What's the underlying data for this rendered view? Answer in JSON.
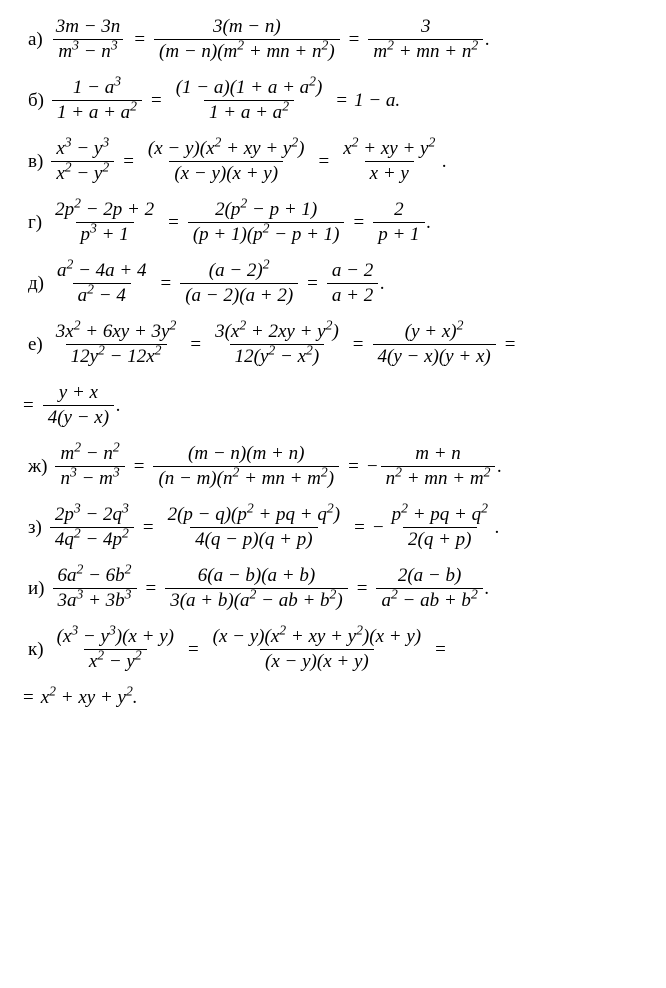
{
  "items": [
    {
      "label": "а)",
      "segments": [
        {
          "type": "frac",
          "num": "3m − 3n",
          "den": "m<sup>3</sup> − n<sup>3</sup>"
        },
        {
          "type": "op",
          "text": "="
        },
        {
          "type": "frac",
          "num": "3(m − n)",
          "den": "(m − n)(m<sup>2</sup> + mn + n<sup>2</sup>)"
        },
        {
          "type": "op",
          "text": "="
        },
        {
          "type": "frac",
          "num": "3",
          "den": "m<sup>2</sup> + mn + n<sup>2</sup>"
        },
        {
          "type": "text",
          "text": "."
        }
      ]
    },
    {
      "label": "б)",
      "segments": [
        {
          "type": "frac",
          "num": "1 − a<sup>3</sup>",
          "den": "1 + a + a<sup>2</sup>"
        },
        {
          "type": "op",
          "text": "="
        },
        {
          "type": "frac",
          "num": "(1 − a)(1 + a + a<sup>2</sup>)",
          "den": "1 + a + a<sup>2</sup>"
        },
        {
          "type": "op",
          "text": "="
        },
        {
          "type": "text",
          "text": "1 − a."
        }
      ]
    },
    {
      "label": "в)",
      "segments": [
        {
          "type": "frac",
          "num": "x<sup>3</sup> − y<sup>3</sup>",
          "den": "x<sup>2</sup> − y<sup>2</sup>"
        },
        {
          "type": "op",
          "text": "="
        },
        {
          "type": "frac",
          "num": "(x − y)(x<sup>2</sup> + xy + y<sup>2</sup>)",
          "den": "(x − y)(x + y)"
        },
        {
          "type": "op",
          "text": "="
        },
        {
          "type": "frac",
          "num": "x<sup>2</sup> + xy + y<sup>2</sup>",
          "den": "x + y"
        },
        {
          "type": "text",
          "text": "."
        }
      ]
    },
    {
      "label": "г)",
      "segments": [
        {
          "type": "frac",
          "num": "2p<sup>2</sup> − 2p + 2",
          "den": "p<sup>3</sup> + 1"
        },
        {
          "type": "op",
          "text": "="
        },
        {
          "type": "frac",
          "num": "2(p<sup>2</sup> − p + 1)",
          "den": "(p + 1)(p<sup>2</sup> − p + 1)"
        },
        {
          "type": "op",
          "text": "="
        },
        {
          "type": "frac",
          "num": "2",
          "den": "p + 1"
        },
        {
          "type": "text",
          "text": "."
        }
      ]
    },
    {
      "label": "д)",
      "segments": [
        {
          "type": "frac",
          "num": "a<sup>2</sup> − 4a + 4",
          "den": "a<sup>2</sup> − 4"
        },
        {
          "type": "op",
          "text": "="
        },
        {
          "type": "frac",
          "num": "(a − 2)<sup>2</sup>",
          "den": "(a − 2)(a + 2)"
        },
        {
          "type": "op",
          "text": "="
        },
        {
          "type": "frac",
          "num": "a − 2",
          "den": "a + 2"
        },
        {
          "type": "text",
          "text": "."
        }
      ]
    },
    {
      "label": "е)",
      "segments": [
        {
          "type": "frac",
          "num": "3x<sup>2</sup> + 6xy + 3y<sup>2</sup>",
          "den": "12y<sup>2</sup> − 12x<sup>2</sup>"
        },
        {
          "type": "op",
          "text": "="
        },
        {
          "type": "frac",
          "num": "3(x<sup>2</sup> + 2xy + y<sup>2</sup>)",
          "den": "12(y<sup>2</sup> − x<sup>2</sup>)"
        },
        {
          "type": "op",
          "text": "="
        },
        {
          "type": "frac",
          "num": "(y + x)<sup>2</sup>",
          "den": "4(y − x)(y + x)"
        },
        {
          "type": "op",
          "text": "="
        }
      ],
      "cont": [
        {
          "type": "op",
          "text": "="
        },
        {
          "type": "frac",
          "num": "y + x",
          "den": "4(y − x)"
        },
        {
          "type": "text",
          "text": "."
        }
      ]
    },
    {
      "label": "ж)",
      "segments": [
        {
          "type": "frac",
          "num": "m<sup>2</sup> − n<sup>2</sup>",
          "den": "n<sup>3</sup> − m<sup>3</sup>"
        },
        {
          "type": "op",
          "text": "="
        },
        {
          "type": "frac",
          "num": "(m − n)(m + n)",
          "den": "(n − m)(n<sup>2</sup> + mn + m<sup>2</sup>)"
        },
        {
          "type": "op",
          "text": "="
        },
        {
          "type": "text",
          "text": "−"
        },
        {
          "type": "frac",
          "num": "m + n",
          "den": "n<sup>2</sup> + mn + m<sup>2</sup>"
        },
        {
          "type": "text",
          "text": "."
        }
      ]
    },
    {
      "label": "з)",
      "segments": [
        {
          "type": "frac",
          "num": "2p<sup>3</sup> − 2q<sup>3</sup>",
          "den": "4q<sup>2</sup> − 4p<sup>2</sup>"
        },
        {
          "type": "op",
          "text": "="
        },
        {
          "type": "frac",
          "num": "2(p − q)(p<sup>2</sup> + pq + q<sup>2</sup>)",
          "den": "4(q − p)(q + p)"
        },
        {
          "type": "op",
          "text": "="
        },
        {
          "type": "text",
          "text": "−"
        },
        {
          "type": "frac",
          "num": "p<sup>2</sup> + pq + q<sup>2</sup>",
          "den": "2(q + p)"
        },
        {
          "type": "text",
          "text": "."
        }
      ]
    },
    {
      "label": "и)",
      "segments": [
        {
          "type": "frac",
          "num": "6a<sup>2</sup> − 6b<sup>2</sup>",
          "den": "3a<sup>3</sup> + 3b<sup>3</sup>"
        },
        {
          "type": "op",
          "text": "="
        },
        {
          "type": "frac",
          "num": "6(a − b)(a + b)",
          "den": "3(a + b)(a<sup>2</sup> − ab + b<sup>2</sup>)"
        },
        {
          "type": "op",
          "text": "="
        },
        {
          "type": "frac",
          "num": "2(a − b)",
          "den": "a<sup>2</sup> − ab + b<sup>2</sup>"
        },
        {
          "type": "text",
          "text": "."
        }
      ]
    },
    {
      "label": "к)",
      "segments": [
        {
          "type": "frac",
          "num": "(x<sup>3</sup> − y<sup>3</sup>)(x + y)",
          "den": "x<sup>2</sup> − y<sup>2</sup>"
        },
        {
          "type": "op",
          "text": "="
        },
        {
          "type": "frac",
          "num": "(x − y)(x<sup>2</sup> + xy + y<sup>2</sup>)(x + y)",
          "den": "(x − y)(x + y)"
        },
        {
          "type": "op",
          "text": "="
        }
      ],
      "cont": [
        {
          "type": "op",
          "text": "="
        },
        {
          "type": "text",
          "text": "x<sup>2</sup> + xy + y<sup>2</sup>."
        }
      ]
    }
  ]
}
